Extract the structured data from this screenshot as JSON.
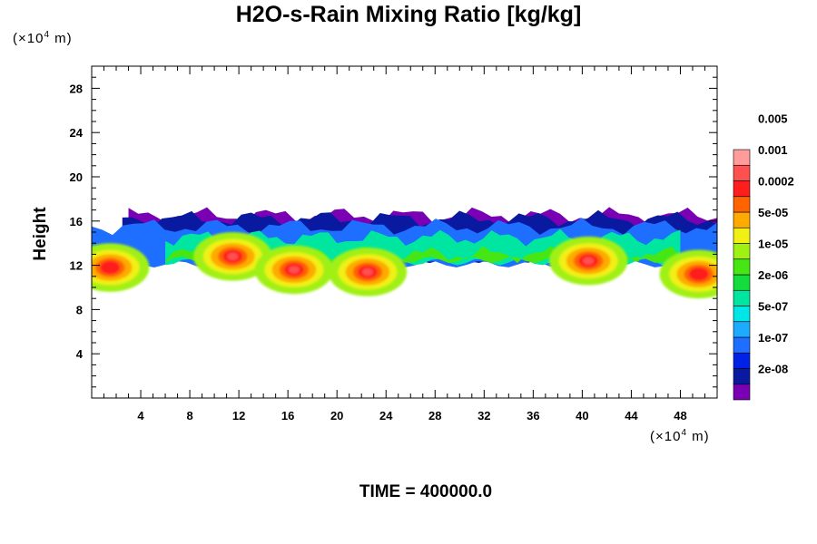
{
  "chart_data": {
    "type": "heatmap",
    "title": "H2O-s-Rain Mixing Ratio [kg/kg]",
    "xlabel": "",
    "ylabel": "Height",
    "x_unit_base": "(×10",
    "x_unit_exp": "4",
    "x_unit_tail": " m)",
    "y_unit_base": "(×10",
    "y_unit_exp": "4",
    "y_unit_tail": " m)",
    "xlim": [
      0,
      51
    ],
    "ylim": [
      0,
      30
    ],
    "x_ticks": [
      4,
      8,
      12,
      16,
      20,
      24,
      28,
      32,
      36,
      40,
      44,
      48
    ],
    "y_ticks": [
      4,
      8,
      12,
      16,
      20,
      24,
      28
    ],
    "colorbar": {
      "levels": [
        "2e-08",
        "1e-07",
        "5e-07",
        "2e-06",
        "1e-05",
        "5e-05",
        "0.0002",
        "0.001",
        "0.005"
      ],
      "colors": [
        "#7a00b4",
        "#0a1aa0",
        "#0022e6",
        "#1e6eff",
        "#1eaaff",
        "#00e6e6",
        "#00e6a0",
        "#14dc3c",
        "#46e614",
        "#a0f014",
        "#f0f014",
        "#ffaa00",
        "#ff6400",
        "#ff1e1e",
        "#ff5050",
        "#ff9b9b"
      ]
    },
    "time_label": "TIME = 400000.0",
    "field": {
      "base_layer": {
        "x_start": 0,
        "x_end": 51,
        "y_bottom": 10.5,
        "y_top": 18.5,
        "level": "2e-08"
      },
      "cells": [
        {
          "x": 1.5,
          "y": 11.8,
          "peak": 0.001
        },
        {
          "x": 11.5,
          "y": 12.8,
          "peak": 0.005
        },
        {
          "x": 16.5,
          "y": 11.6,
          "peak": 0.005
        },
        {
          "x": 22.5,
          "y": 11.4,
          "peak": 0.005
        },
        {
          "x": 40.5,
          "y": 12.4,
          "peak": 0.005
        },
        {
          "x": 49.5,
          "y": 11.2,
          "peak": 0.001
        }
      ]
    }
  }
}
